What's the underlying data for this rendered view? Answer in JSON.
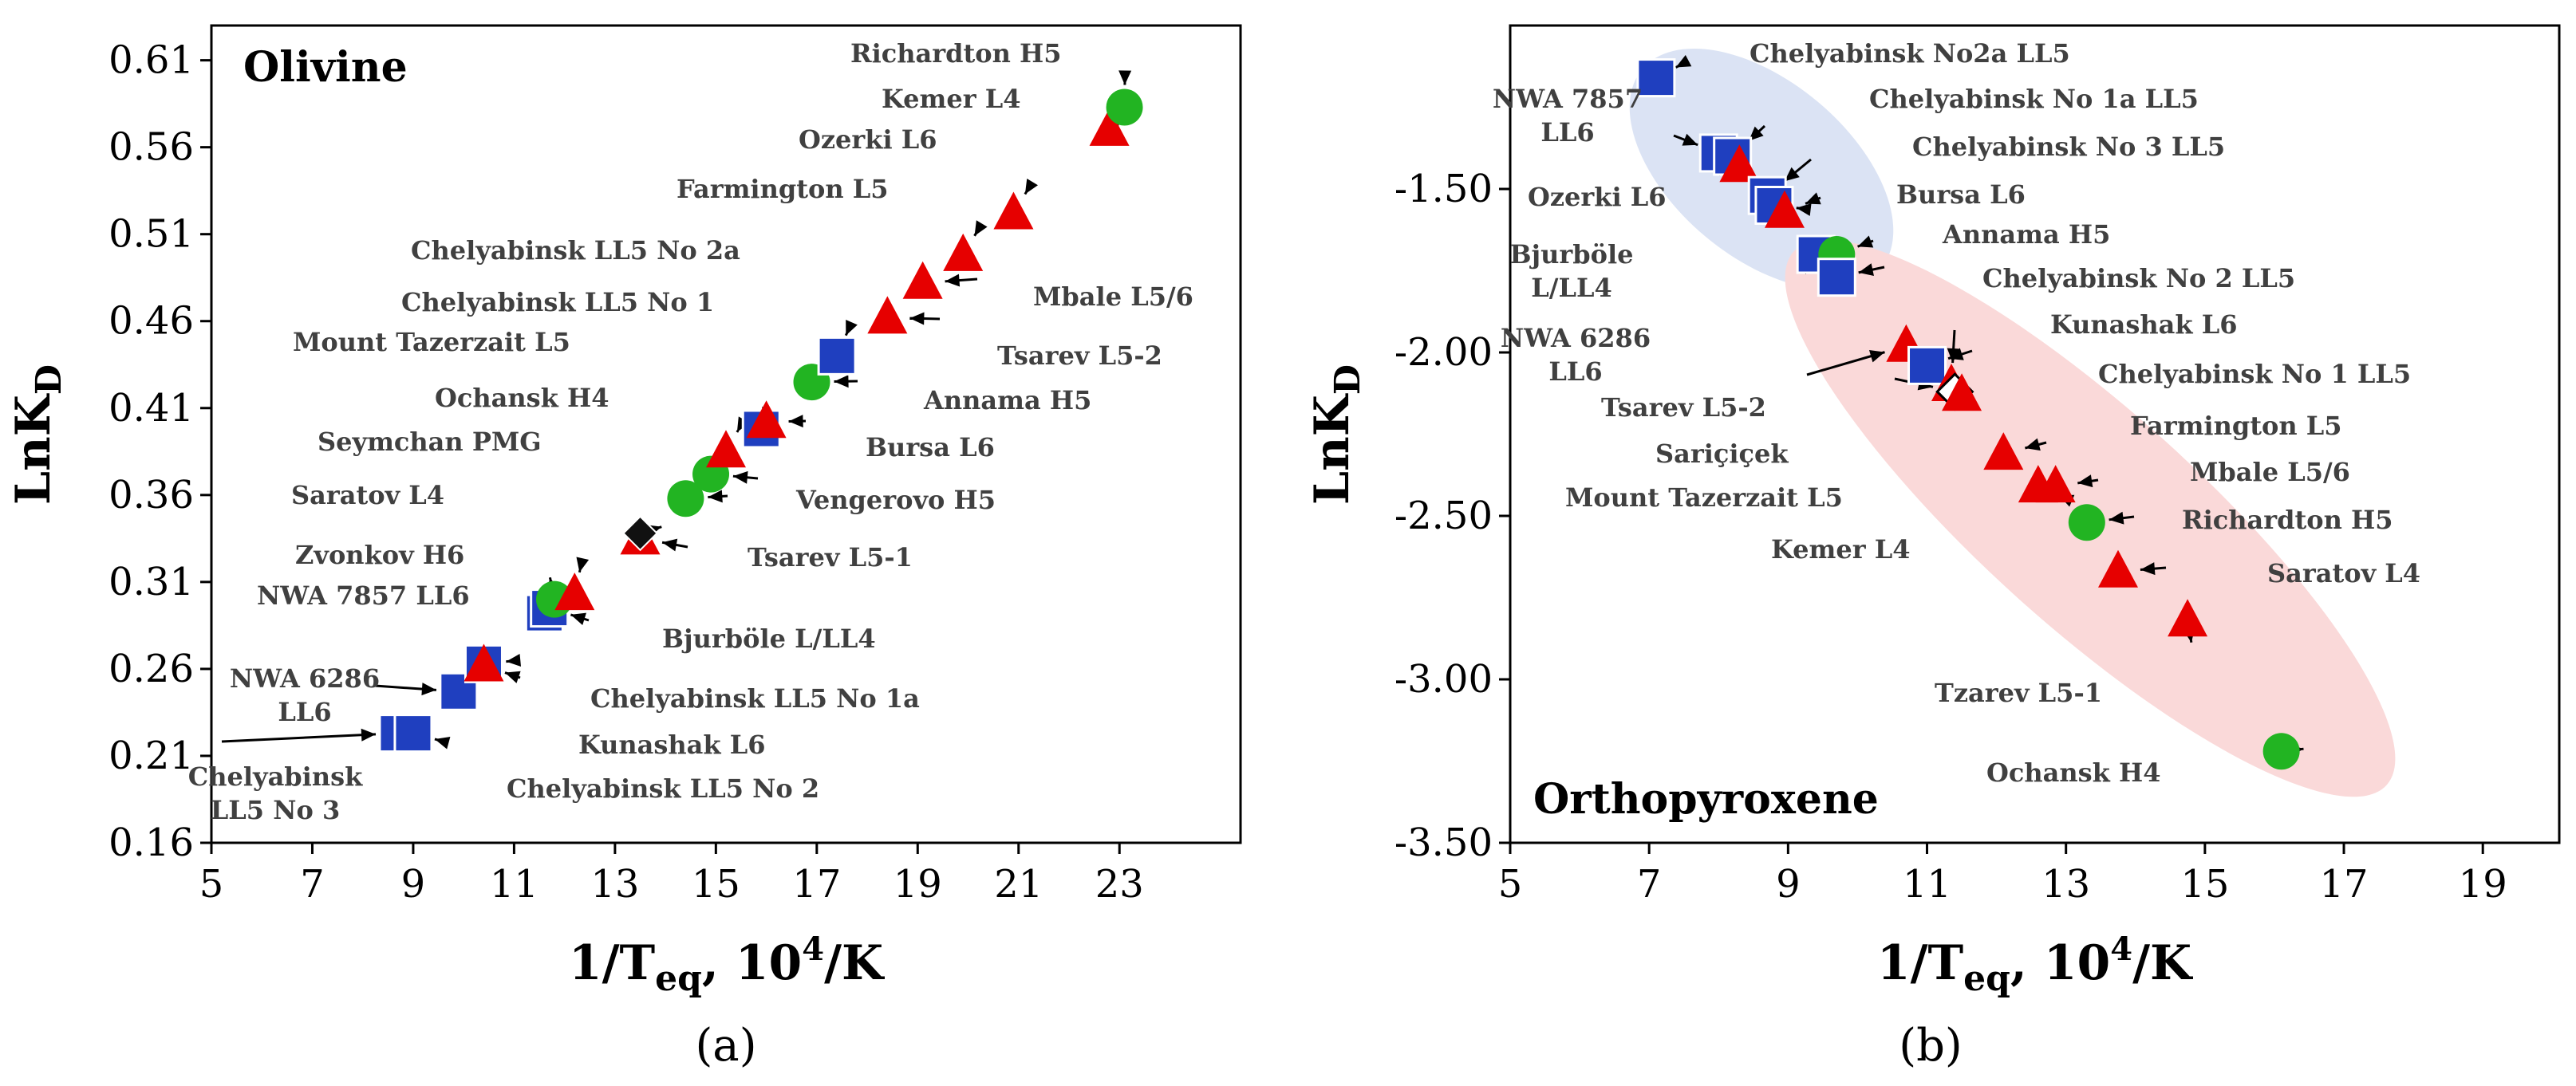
{
  "chart_data": [
    {
      "type": "scatter",
      "panel_label": "(a)",
      "title": "Olivine",
      "xlabel": "1/Teq, 10⁴/K",
      "ylabel": "LnKD",
      "xlim": [
        5,
        25
      ],
      "ylim": [
        0.16,
        0.63
      ],
      "xticks": [
        5,
        7,
        9,
        11,
        13,
        15,
        17,
        19,
        21,
        23
      ],
      "xtick_labels": [
        "5",
        "7",
        "9",
        "11",
        "13",
        "15",
        "17",
        "19",
        "21",
        "23"
      ],
      "yticks": [
        0.16,
        0.21,
        0.26,
        0.31,
        0.36,
        0.41,
        0.46,
        0.51,
        0.56,
        0.61
      ],
      "ytick_labels": [
        "0.16",
        "0.21",
        "0.26",
        "0.31",
        "0.36",
        "0.41",
        "0.46",
        "0.51",
        "0.56",
        "0.61"
      ],
      "points": [
        {
          "id": "chel-ll5-no3",
          "label": "Chelyabinsk\nLL5 No 3",
          "x": 8.7,
          "y": 0.223,
          "group": "LL",
          "marker": "square",
          "color": "#1f3fbf"
        },
        {
          "id": "chel-ll5-no2",
          "label": "Chelyabinsk LL5 No 2",
          "x": 9.0,
          "y": 0.223,
          "group": "LL",
          "marker": "square",
          "color": "#1f3fbf"
        },
        {
          "id": "nwa6286",
          "label": "NWA 6286\nLL6",
          "x": 9.9,
          "y": 0.247,
          "group": "LL",
          "marker": "square",
          "color": "#1f3fbf"
        },
        {
          "id": "chel-ll5-no1a",
          "label": "Chelyabinsk LL5 No 1a",
          "x": 10.4,
          "y": 0.263,
          "group": "LL",
          "marker": "square",
          "color": "#1f3fbf"
        },
        {
          "id": "kunashak",
          "label": "Kunashak L6",
          "x": 10.4,
          "y": 0.262,
          "group": "L",
          "marker": "triangle",
          "color": "#e60000"
        },
        {
          "id": "nwa7857",
          "label": "NWA 7857 LL6",
          "x": 11.6,
          "y": 0.292,
          "group": "LL",
          "marker": "square",
          "color": "#1f3fbf"
        },
        {
          "id": "bjurbole",
          "label": "Bjurböle L/LL4",
          "x": 11.7,
          "y": 0.295,
          "group": "LL",
          "marker": "square",
          "color": "#1f3fbf"
        },
        {
          "id": "zvonkov",
          "label": "Zvonkov H6",
          "x": 11.8,
          "y": 0.3,
          "group": "H",
          "marker": "circle",
          "color": "#22b422"
        },
        {
          "id": "saratov",
          "label": "Saratov L4",
          "x": 12.2,
          "y": 0.303,
          "group": "L",
          "marker": "triangle",
          "color": "#e60000"
        },
        {
          "id": "tsarev-l5-1",
          "label": "Tsarev L5-1",
          "x": 13.5,
          "y": 0.335,
          "group": "L",
          "marker": "triangle",
          "color": "#e60000"
        },
        {
          "id": "seymchan",
          "label": "Seymchan PMG",
          "x": 13.5,
          "y": 0.338,
          "group": "PMG",
          "marker": "diamond",
          "color": "#111111"
        },
        {
          "id": "vengerovo",
          "label": "Vengerovo H5",
          "x": 14.4,
          "y": 0.358,
          "group": "H",
          "marker": "circle",
          "color": "#22b422"
        },
        {
          "id": "ochansk",
          "label": "Ochansk H4",
          "x": 14.9,
          "y": 0.372,
          "group": "H",
          "marker": "circle",
          "color": "#22b422"
        },
        {
          "id": "mount-tazerzait",
          "label": "Mount Tazerzait L5",
          "x": 15.2,
          "y": 0.385,
          "group": "L",
          "marker": "triangle",
          "color": "#e60000"
        },
        {
          "id": "chel-ll5-no1",
          "label": "Chelyabinsk LL5 No 1",
          "x": 15.9,
          "y": 0.398,
          "group": "LL",
          "marker": "square",
          "color": "#1f3fbf"
        },
        {
          "id": "bursa",
          "label": "Bursa L6",
          "x": 16.0,
          "y": 0.402,
          "group": "L",
          "marker": "triangle",
          "color": "#e60000"
        },
        {
          "id": "annama",
          "label": "Annama H5",
          "x": 16.9,
          "y": 0.425,
          "group": "H",
          "marker": "circle",
          "color": "#22b422"
        },
        {
          "id": "chel-ll5-no2a",
          "label": "Chelyabinsk LL5 No 2a",
          "x": 17.4,
          "y": 0.44,
          "group": "LL",
          "marker": "square",
          "color": "#1f3fbf"
        },
        {
          "id": "tsarev-l5-2",
          "label": "Tsarev L5-2",
          "x": 18.4,
          "y": 0.462,
          "group": "L",
          "marker": "triangle",
          "color": "#e60000"
        },
        {
          "id": "mbale",
          "label": "Mbale L5/6",
          "x": 19.1,
          "y": 0.482,
          "group": "L",
          "marker": "triangle",
          "color": "#e60000"
        },
        {
          "id": "farmington",
          "label": "Farmington L5",
          "x": 19.9,
          "y": 0.498,
          "group": "L",
          "marker": "triangle",
          "color": "#e60000"
        },
        {
          "id": "ozerki",
          "label": "Ozerki L6",
          "x": 20.9,
          "y": 0.522,
          "group": "L",
          "marker": "triangle",
          "color": "#e60000"
        },
        {
          "id": "kemer",
          "label": "Kemer L4",
          "x": 22.8,
          "y": 0.57,
          "group": "L",
          "marker": "triangle",
          "color": "#e60000"
        },
        {
          "id": "richardton",
          "label": "Richardton H5",
          "x": 23.1,
          "y": 0.583,
          "group": "H",
          "marker": "circle",
          "color": "#22b422"
        }
      ]
    },
    {
      "type": "scatter",
      "panel_label": "(b)",
      "title": "Orthopyroxene",
      "xlabel": "1/Teq, 10⁴/K",
      "ylabel": "LnKD",
      "xlim": [
        5,
        20
      ],
      "ylim": [
        -3.5,
        -1.0
      ],
      "xticks": [
        5,
        7,
        9,
        11,
        13,
        15,
        17,
        19
      ],
      "xtick_labels": [
        "5",
        "7",
        "9",
        "11",
        "13",
        "15",
        "17",
        "19"
      ],
      "yticks": [
        -1.5,
        -2.0,
        -2.5,
        -3.0,
        -3.5
      ],
      "ytick_labels": [
        "-1.50",
        "-2.00",
        "-2.50",
        "-3.00",
        "-3.50"
      ],
      "ellipses": [
        {
          "name": "LL field",
          "color": "#dbe3f4"
        },
        {
          "name": "L/H field",
          "color": "#fad9d9"
        }
      ],
      "points": [
        {
          "id": "chel-no2a",
          "label": "Chelyabinsk No2a LL5",
          "x": 7.1,
          "y": -1.16,
          "group": "LL",
          "marker": "square",
          "color": "#1f3fbf"
        },
        {
          "id": "nwa7857",
          "label": "NWA 7857\nLL6",
          "x": 8.0,
          "y": -1.39,
          "group": "LL",
          "marker": "square",
          "color": "#1f3fbf"
        },
        {
          "id": "chel-no1a",
          "label": "Chelyabinsk No 1a LL5",
          "x": 8.2,
          "y": -1.4,
          "group": "LL",
          "marker": "square",
          "color": "#1f3fbf"
        },
        {
          "id": "ozerki",
          "label": "Ozerki L6",
          "x": 8.3,
          "y": -1.43,
          "group": "L",
          "marker": "triangle",
          "color": "#e60000"
        },
        {
          "id": "chel-no3",
          "label": "Chelyabinsk No 3 LL5",
          "x": 8.7,
          "y": -1.52,
          "group": "LL",
          "marker": "square",
          "color": "#1f3fbf"
        },
        {
          "id": "bjurbole",
          "label": "Bjurböle\nL/LL4",
          "x": 8.8,
          "y": -1.55,
          "group": "LL",
          "marker": "square",
          "color": "#1f3fbf"
        },
        {
          "id": "bursa",
          "label": "Bursa L6",
          "x": 8.95,
          "y": -1.57,
          "group": "L",
          "marker": "triangle",
          "color": "#e60000"
        },
        {
          "id": "nwa6286",
          "label": "NWA 6286\nLL6",
          "x": 9.4,
          "y": -1.7,
          "group": "LL",
          "marker": "square",
          "color": "#1f3fbf"
        },
        {
          "id": "annama",
          "label": "Annama H5",
          "x": 9.7,
          "y": -1.7,
          "group": "H",
          "marker": "circle",
          "color": "#22b422"
        },
        {
          "id": "chel-no2",
          "label": "Chelyabinsk No 2 LL5",
          "x": 9.7,
          "y": -1.77,
          "group": "LL",
          "marker": "square",
          "color": "#1f3fbf"
        },
        {
          "id": "tsarev-l5-2",
          "label": "Tsarev L5-2",
          "x": 10.7,
          "y": -1.98,
          "group": "L",
          "marker": "triangle",
          "color": "#e60000"
        },
        {
          "id": "chel-no1",
          "label": "Chelyabinsk No 1 LL5",
          "x": 11.0,
          "y": -2.04,
          "group": "LL",
          "marker": "square",
          "color": "#1f3fbf"
        },
        {
          "id": "kunashak",
          "label": "Kunashak L6",
          "x": 11.35,
          "y": -2.1,
          "group": "L",
          "marker": "triangle",
          "color": "#e60000"
        },
        {
          "id": "saricicek",
          "label": "Sariçiçek",
          "x": 11.4,
          "y": -2.12,
          "group": "HED",
          "marker": "diamond-open",
          "color": "#ffffff"
        },
        {
          "id": "mount-tazerzait",
          "label": "Mount Tazerzait L5",
          "x": 11.5,
          "y": -2.13,
          "group": "L",
          "marker": "triangle",
          "color": "#e60000"
        },
        {
          "id": "farmington",
          "label": "Farmington L5",
          "x": 12.1,
          "y": -2.31,
          "group": "L",
          "marker": "triangle",
          "color": "#e60000"
        },
        {
          "id": "kemer",
          "label": "Kemer L4",
          "x": 12.6,
          "y": -2.41,
          "group": "L",
          "marker": "triangle",
          "color": "#e60000"
        },
        {
          "id": "mbale",
          "label": "Mbale L5/6",
          "x": 12.85,
          "y": -2.41,
          "group": "L",
          "marker": "triangle",
          "color": "#e60000"
        },
        {
          "id": "richardton",
          "label": "Richardton H5",
          "x": 13.3,
          "y": -2.52,
          "group": "H",
          "marker": "circle",
          "color": "#22b422"
        },
        {
          "id": "saratov",
          "label": "Saratov L4",
          "x": 13.75,
          "y": -2.67,
          "group": "L",
          "marker": "triangle",
          "color": "#e60000"
        },
        {
          "id": "tzarev-l5-1",
          "label": "Tzarev L5-1",
          "x": 14.75,
          "y": -2.82,
          "group": "L",
          "marker": "triangle",
          "color": "#e60000"
        },
        {
          "id": "ochansk",
          "label": "Ochansk H4",
          "x": 16.1,
          "y": -3.22,
          "group": "H",
          "marker": "circle",
          "color": "#22b422"
        }
      ]
    }
  ]
}
